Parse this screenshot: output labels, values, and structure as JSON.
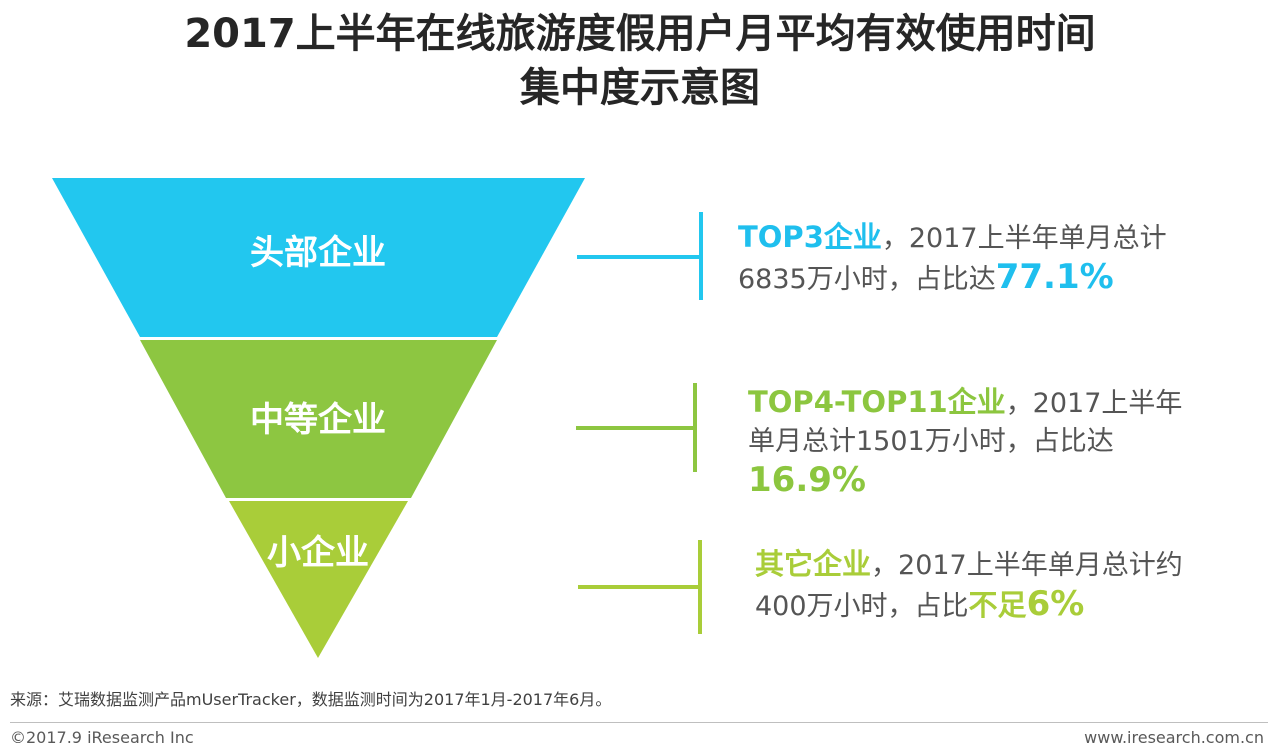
{
  "title": {
    "line1": "2017上半年在线旅游度假用户月平均有效使用时间",
    "line2": "集中度示意图"
  },
  "colors": {
    "tier_top": "#22c7ef",
    "tier_mid": "#8dc641",
    "tier_small": "#a9cd39",
    "connector_top": "#22c7ef",
    "connector_mid": "#8dc641",
    "connector_small": "#a9cd39"
  },
  "tiers": [
    {
      "label": "头部企业",
      "head": "TOP3企业",
      "text_a": "，2017上半年单月总计",
      "text_b": "6835万小时，占比达",
      "value": "77.1%"
    },
    {
      "label": "中等企业",
      "head": "TOP4-TOP11企业",
      "text_a": "，2017上半年",
      "text_b": "单月总计1501万小时，占比达",
      "value": "16.9%"
    },
    {
      "label": "小企业",
      "head": "其它企业",
      "text_a": "，2017上半年单月总计约",
      "text_b": "400万小时，占比",
      "value_prefix": "不足",
      "value": "6%"
    }
  ],
  "source": "来源：艾瑞数据监测产品mUserTracker，数据监测时间为2017年1月-2017年6月。",
  "footer": {
    "copyright": "©2017.9 iResearch Inc",
    "website": "www.iresearch.com.cn"
  }
}
